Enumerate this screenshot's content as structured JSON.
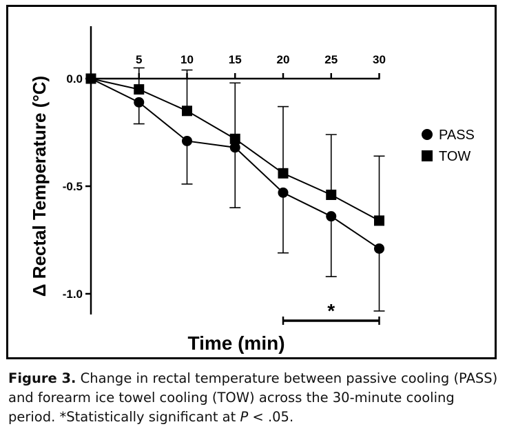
{
  "chart_data": {
    "type": "line",
    "title": "",
    "xlabel": "Time (min)",
    "ylabel": "Δ Rectal Temperature (°C)",
    "x": [
      0,
      5,
      10,
      15,
      20,
      25,
      30
    ],
    "x_tick_labels": [
      "5",
      "10",
      "15",
      "20",
      "25",
      "30"
    ],
    "y_tick_labels": [
      "0.0",
      "-0.5",
      "-1.0"
    ],
    "y_ticks": [
      0,
      -0.5,
      -1.0
    ],
    "xlim": [
      0,
      30
    ],
    "ylim": [
      -1.1,
      0.25
    ],
    "grid": false,
    "legend_position": "right",
    "series": [
      {
        "name": "PASS",
        "marker": "circle",
        "values": [
          0,
          -0.11,
          -0.29,
          -0.32,
          -0.53,
          -0.64,
          -0.79
        ],
        "error": [
          0,
          0.1,
          0.2,
          0.28,
          0.28,
          0.28,
          0.29
        ]
      },
      {
        "name": "TOW",
        "marker": "square",
        "values": [
          0,
          -0.05,
          -0.15,
          -0.28,
          -0.44,
          -0.54,
          -0.66
        ],
        "error": [
          0,
          0.1,
          0.19,
          0.26,
          0.31,
          0.28,
          0.3
        ]
      }
    ],
    "significance": {
      "x_start": 20,
      "x_end": 30,
      "label": "*"
    }
  },
  "caption": {
    "label": "Figure 3.",
    "text_1": " Change in rectal temperature between passive cooling (PASS) and forearm ice towel cooling (TOW) across the 30-minute cooling period. *Statistically significant at ",
    "p_symbol": "P",
    "text_2": " < .05."
  },
  "colors": {
    "ink": "#000000",
    "background": "#ffffff"
  }
}
